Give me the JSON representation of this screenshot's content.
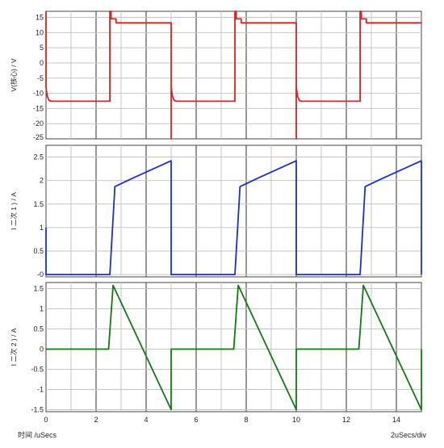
{
  "footer": {
    "x_axis_label": "时间  /uSecs",
    "timebase_label": "2uSecs/div"
  },
  "chart_data": [
    {
      "type": "line",
      "panel": "top",
      "ylabel": "V(核心) / V",
      "xlim": [
        0,
        15
      ],
      "ylim": [
        -25,
        17
      ],
      "x_ticks": [
        0,
        2,
        4,
        6,
        8,
        10,
        12,
        14
      ],
      "x_tick_labels": [
        "0",
        "2",
        "4",
        "6",
        "8",
        "10",
        "12",
        "14"
      ],
      "y_ticks": [
        15,
        10,
        5,
        0,
        -5,
        -10,
        -15,
        -20,
        -25
      ],
      "y_tick_labels": [
        "15",
        "10",
        "5",
        "0",
        "-5",
        "-10",
        "-15",
        "-20",
        "-25"
      ],
      "grid": true,
      "series": [
        {
          "color": "#e02020",
          "x": [
            0,
            0,
            0.05,
            0.12,
            0.2,
            2.55,
            2.55,
            2.6,
            2.6,
            2.8,
            2.8,
            5.0,
            5.0,
            5.0,
            5.05,
            5.12,
            5.2,
            7.55,
            7.55,
            7.6,
            7.6,
            7.8,
            7.8,
            10.0,
            10.0,
            10.0,
            10.05,
            10.12,
            10.2,
            12.55,
            12.55,
            12.6,
            12.6,
            12.8,
            12.8,
            15.0
          ],
          "y": [
            17,
            -8,
            -11,
            -12.3,
            -12.6,
            -12.6,
            17,
            17,
            14.5,
            14.5,
            13.2,
            13.2,
            -25,
            -8,
            -11,
            -12.3,
            -12.6,
            -12.6,
            17,
            17,
            14.5,
            14.5,
            13.2,
            13.2,
            -25,
            -8,
            -11,
            -12.3,
            -12.6,
            -12.6,
            17,
            17,
            14.5,
            14.5,
            13.2,
            13.2
          ]
        }
      ]
    },
    {
      "type": "line",
      "panel": "middle",
      "ylabel": "I   二次 1   ) / A",
      "xlim": [
        0,
        15
      ],
      "ylim": [
        -0.05,
        2.75
      ],
      "x_ticks": [
        0,
        2,
        4,
        6,
        8,
        10,
        12,
        14
      ],
      "x_tick_labels": [
        "0",
        "2",
        "4",
        "6",
        "8",
        "10",
        "12",
        "14"
      ],
      "y_ticks": [
        2.5,
        2,
        1.5,
        1,
        0.5,
        0
      ],
      "y_tick_labels": [
        "2.5",
        "2",
        "1.5",
        "1",
        "0.5",
        "-0"
      ],
      "grid": true,
      "series": [
        {
          "color": "#1c2fd6",
          "x": [
            0,
            0,
            0.02,
            2.55,
            2.75,
            3.5,
            4.5,
            5.0,
            5.0,
            5.02,
            7.55,
            7.75,
            8.5,
            9.5,
            10.0,
            10.0,
            10.02,
            12.55,
            12.75,
            13.5,
            14.5,
            15.0,
            15.0
          ],
          "y": [
            1.0,
            0.0,
            0.0,
            0.0,
            1.87,
            2.06,
            2.3,
            2.42,
            0.0,
            0.0,
            0.0,
            1.87,
            2.06,
            2.3,
            2.42,
            0.0,
            0.0,
            0.0,
            1.87,
            2.06,
            2.3,
            2.42,
            0.0
          ]
        }
      ]
    },
    {
      "type": "line",
      "panel": "bottom",
      "ylabel": "I   二次 2   ) / A",
      "xlim": [
        0,
        15
      ],
      "ylim": [
        -1.55,
        1.65
      ],
      "x_ticks": [
        0,
        2,
        4,
        6,
        8,
        10,
        12,
        14
      ],
      "x_tick_labels": [
        "0",
        "2",
        "4",
        "6",
        "8",
        "10",
        "12",
        "14"
      ],
      "y_ticks": [
        1.5,
        1,
        0.5,
        0,
        -0.5,
        -1,
        -1.5
      ],
      "y_tick_labels": [
        "1.5",
        "1",
        "0.5",
        "0",
        "-0.5",
        "-1",
        "-1.5"
      ],
      "grid": true,
      "series": [
        {
          "color": "#127a12",
          "x": [
            0,
            2.5,
            2.68,
            5.0,
            5.0,
            7.5,
            7.68,
            10.0,
            10.0,
            12.5,
            12.68,
            15.0,
            15.0
          ],
          "y": [
            0.0,
            0.0,
            1.58,
            -1.5,
            0.0,
            0.0,
            1.58,
            -1.5,
            0.0,
            0.0,
            1.58,
            -1.5,
            0.0
          ]
        }
      ]
    }
  ]
}
